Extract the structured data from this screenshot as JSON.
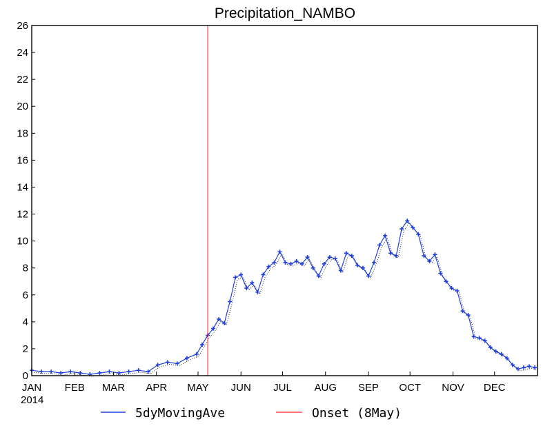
{
  "chart_data": {
    "type": "line",
    "title": "Precipitation_NAMBO",
    "xlabel": "",
    "ylabel": "",
    "year_label": "2014",
    "x_tick_labels": [
      "JAN",
      "FEB",
      "MAR",
      "APR",
      "MAY",
      "JUN",
      "JUL",
      "AUG",
      "SEP",
      "OCT",
      "NOV",
      "DEC"
    ],
    "y_tick_labels": [
      "0",
      "2",
      "4",
      "6",
      "8",
      "10",
      "12",
      "14",
      "16",
      "18",
      "20",
      "22",
      "24",
      "26"
    ],
    "xlim": [
      "2014-01-01",
      "2014-12-31"
    ],
    "ylim": [
      0,
      26
    ],
    "grid": false,
    "legend_position": "bottom",
    "series": [
      {
        "name": "5dyMovingAve",
        "color": "#1f3fdc",
        "marker": "plus",
        "x": [
          "2014-01-01",
          "2014-01-08",
          "2014-01-15",
          "2014-01-22",
          "2014-01-29",
          "2014-02-05",
          "2014-02-12",
          "2014-02-19",
          "2014-02-26",
          "2014-03-05",
          "2014-03-12",
          "2014-03-19",
          "2014-03-26",
          "2014-04-02",
          "2014-04-09",
          "2014-04-16",
          "2014-04-23",
          "2014-04-30",
          "2014-05-04",
          "2014-05-08",
          "2014-05-12",
          "2014-05-16",
          "2014-05-20",
          "2014-05-24",
          "2014-05-28",
          "2014-06-01",
          "2014-06-05",
          "2014-06-09",
          "2014-06-13",
          "2014-06-17",
          "2014-06-21",
          "2014-06-25",
          "2014-06-29",
          "2014-07-03",
          "2014-07-07",
          "2014-07-11",
          "2014-07-15",
          "2014-07-19",
          "2014-07-23",
          "2014-07-27",
          "2014-07-31",
          "2014-08-04",
          "2014-08-08",
          "2014-08-12",
          "2014-08-16",
          "2014-08-20",
          "2014-08-24",
          "2014-08-28",
          "2014-09-01",
          "2014-09-05",
          "2014-09-09",
          "2014-09-13",
          "2014-09-17",
          "2014-09-21",
          "2014-09-25",
          "2014-09-29",
          "2014-10-03",
          "2014-10-07",
          "2014-10-11",
          "2014-10-15",
          "2014-10-19",
          "2014-10-23",
          "2014-10-27",
          "2014-10-31",
          "2014-11-04",
          "2014-11-08",
          "2014-11-12",
          "2014-11-16",
          "2014-11-20",
          "2014-11-24",
          "2014-11-28",
          "2014-12-02",
          "2014-12-06",
          "2014-12-10",
          "2014-12-14",
          "2014-12-18",
          "2014-12-22",
          "2014-12-26",
          "2014-12-30"
        ],
        "values": [
          0.4,
          0.3,
          0.3,
          0.2,
          0.3,
          0.2,
          0.1,
          0.2,
          0.3,
          0.2,
          0.3,
          0.4,
          0.3,
          0.8,
          1.0,
          0.9,
          1.3,
          1.6,
          2.3,
          3.0,
          3.5,
          4.2,
          3.9,
          5.5,
          7.3,
          7.5,
          6.5,
          6.9,
          6.2,
          7.5,
          8.1,
          8.4,
          9.2,
          8.4,
          8.3,
          8.5,
          8.3,
          8.8,
          8.0,
          7.4,
          8.3,
          8.8,
          8.7,
          7.8,
          9.1,
          8.9,
          8.2,
          8.0,
          7.4,
          8.4,
          9.7,
          10.4,
          9.1,
          8.9,
          10.9,
          11.5,
          11.0,
          10.5,
          8.9,
          8.5,
          9.0,
          7.6,
          7.0,
          6.5,
          6.3,
          4.8,
          4.5,
          2.9,
          2.8,
          2.6,
          2.1,
          1.8,
          1.6,
          1.3,
          0.8,
          0.5,
          0.6,
          0.7,
          0.6
        ]
      },
      {
        "name": "Onset (8May)",
        "color": "#ff2020",
        "marker": "none",
        "x": [
          "2014-05-08",
          "2014-05-08"
        ],
        "values": [
          0,
          26
        ]
      }
    ]
  }
}
